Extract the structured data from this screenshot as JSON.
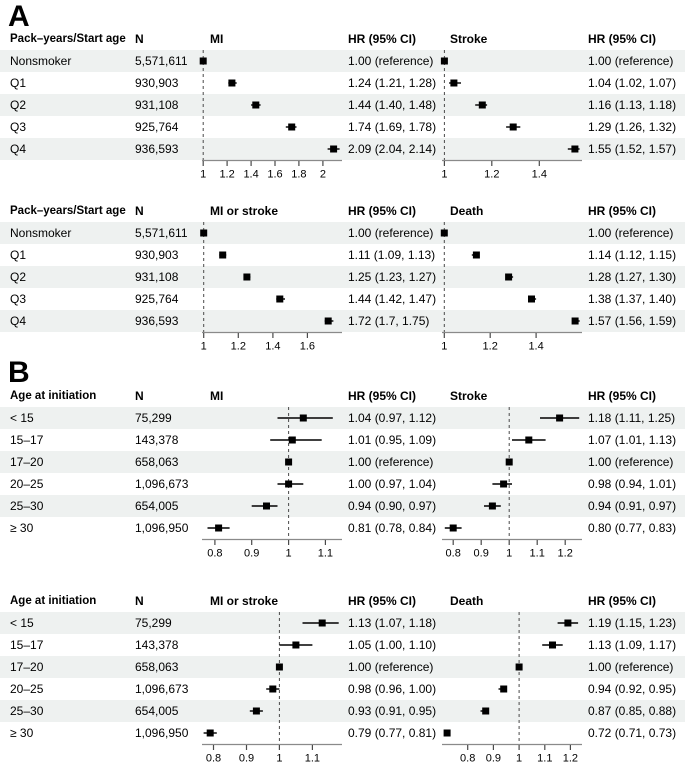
{
  "panels": [
    {
      "letter": "A"
    },
    {
      "letter": "B"
    }
  ],
  "styles": {
    "stripe_color": "#eef1f0",
    "marker_color": "#000000",
    "ci_color": "#000000",
    "axis_color": "#8a8a8a",
    "tick_color": "#4a4a4a",
    "ref_line_color": "#4a4a4a"
  },
  "chart_data": [
    {
      "type": "scatter",
      "subtype": "forest",
      "panel": "A",
      "label_header": "Pack–years/Start age",
      "n_header": "N",
      "hr_header": "HR (95% CI)",
      "rows": [
        {
          "label": "Nonsmoker",
          "n": "5,571,611"
        },
        {
          "label": "Q1",
          "n": "930,903"
        },
        {
          "label": "Q2",
          "n": "931,108"
        },
        {
          "label": "Q3",
          "n": "925,764"
        },
        {
          "label": "Q4",
          "n": "936,593"
        }
      ],
      "plots": [
        {
          "title": "MI",
          "xlim": [
            0.99,
            2.16
          ],
          "ref_line": 1,
          "tick_values": [
            1,
            1.2,
            1.4,
            1.6,
            1.8,
            2
          ],
          "tick_labels": [
            "1",
            "1.2",
            "1.4",
            "1.6",
            "1.8",
            "2"
          ],
          "points": [
            {
              "hr": 1.0,
              "ci": [
                1.0,
                1.0
              ],
              "text": "1.00 (reference)"
            },
            {
              "hr": 1.24,
              "ci": [
                1.21,
                1.28
              ],
              "text": "1.24 (1.21, 1.28)"
            },
            {
              "hr": 1.44,
              "ci": [
                1.4,
                1.48
              ],
              "text": "1.44 (1.40, 1.48)"
            },
            {
              "hr": 1.74,
              "ci": [
                1.69,
                1.78
              ],
              "text": "1.74 (1.69, 1.78)"
            },
            {
              "hr": 2.09,
              "ci": [
                2.04,
                2.14
              ],
              "text": "2.09 (2.04, 2.14)"
            }
          ]
        },
        {
          "title": "Stroke",
          "xlim": [
            0.99,
            1.58
          ],
          "ref_line": 1,
          "tick_values": [
            1,
            1.2,
            1.4
          ],
          "tick_labels": [
            "1",
            "1.2",
            "1.4"
          ],
          "points": [
            {
              "hr": 1.0,
              "ci": [
                1.0,
                1.0
              ],
              "text": "1.00 (reference)"
            },
            {
              "hr": 1.04,
              "ci": [
                1.02,
                1.07
              ],
              "text": "1.04 (1.02, 1.07)"
            },
            {
              "hr": 1.16,
              "ci": [
                1.13,
                1.18
              ],
              "text": "1.16 (1.13, 1.18)"
            },
            {
              "hr": 1.29,
              "ci": [
                1.26,
                1.32
              ],
              "text": "1.29 (1.26, 1.32)"
            },
            {
              "hr": 1.55,
              "ci": [
                1.52,
                1.57
              ],
              "text": "1.55 (1.52, 1.57)"
            }
          ]
        }
      ]
    },
    {
      "type": "scatter",
      "subtype": "forest",
      "panel": "A",
      "label_header": "Pack–years/Start age",
      "n_header": "N",
      "hr_header": "HR (95% CI)",
      "rows": [
        {
          "label": "Nonsmoker",
          "n": "5,571,611"
        },
        {
          "label": "Q1",
          "n": "930,903"
        },
        {
          "label": "Q2",
          "n": "931,108"
        },
        {
          "label": "Q3",
          "n": "925,764"
        },
        {
          "label": "Q4",
          "n": "936,593"
        }
      ],
      "plots": [
        {
          "title": "MI or stroke",
          "xlim": [
            0.99,
            1.8
          ],
          "ref_line": 1,
          "tick_values": [
            1,
            1.2,
            1.4,
            1.6
          ],
          "tick_labels": [
            "1",
            "1.2",
            "1.4",
            "1.6"
          ],
          "points": [
            {
              "hr": 1.0,
              "ci": [
                1.0,
                1.0
              ],
              "text": "1.00 (reference)"
            },
            {
              "hr": 1.11,
              "ci": [
                1.09,
                1.13
              ],
              "text": "1.11 (1.09, 1.13)"
            },
            {
              "hr": 1.25,
              "ci": [
                1.23,
                1.27
              ],
              "text": "1.25 (1.23, 1.27)"
            },
            {
              "hr": 1.44,
              "ci": [
                1.42,
                1.47
              ],
              "text": "1.44 (1.42, 1.47)"
            },
            {
              "hr": 1.72,
              "ci": [
                1.7,
                1.75
              ],
              "text": "1.72 (1.7, 1.75)"
            }
          ]
        },
        {
          "title": "Death",
          "xlim": [
            0.99,
            1.6
          ],
          "ref_line": 1,
          "tick_values": [
            1,
            1.2,
            1.4
          ],
          "tick_labels": [
            "1",
            "1.2",
            "1.4"
          ],
          "points": [
            {
              "hr": 1.0,
              "ci": [
                1.0,
                1.0
              ],
              "text": "1.00 (reference)"
            },
            {
              "hr": 1.14,
              "ci": [
                1.12,
                1.15
              ],
              "text": "1.14 (1.12, 1.15)"
            },
            {
              "hr": 1.28,
              "ci": [
                1.27,
                1.3
              ],
              "text": "1.28 (1.27, 1.30)"
            },
            {
              "hr": 1.38,
              "ci": [
                1.37,
                1.4
              ],
              "text": "1.38 (1.37, 1.40)"
            },
            {
              "hr": 1.57,
              "ci": [
                1.56,
                1.59
              ],
              "text": "1.57 (1.56, 1.59)"
            }
          ]
        }
      ]
    },
    {
      "type": "scatter",
      "subtype": "forest",
      "panel": "B",
      "label_header": "Age at initiation",
      "n_header": "N",
      "hr_header": "HR (95% CI)",
      "rows": [
        {
          "label": "< 15",
          "n": "75,299"
        },
        {
          "label": "15–17",
          "n": "143,378"
        },
        {
          "label": "17–20",
          "n": "658,063"
        },
        {
          "label": "20–25",
          "n": "1,096,673"
        },
        {
          "label": "25–30",
          "n": "654,005"
        },
        {
          "label": "≥ 30",
          "n": "1,096,950"
        }
      ],
      "plots": [
        {
          "title": "MI",
          "xlim": [
            0.765,
            1.145
          ],
          "ref_line": 1,
          "tick_values": [
            0.8,
            0.9,
            1,
            1.1
          ],
          "tick_labels": [
            "0.8",
            "0.9",
            "1",
            "1.1"
          ],
          "points": [
            {
              "hr": 1.04,
              "ci": [
                0.97,
                1.12
              ],
              "text": "1.04 (0.97, 1.12)"
            },
            {
              "hr": 1.01,
              "ci": [
                0.95,
                1.09
              ],
              "text": "1.01 (0.95, 1.09)"
            },
            {
              "hr": 1.0,
              "ci": [
                1.0,
                1.0
              ],
              "text": "1.00 (reference)"
            },
            {
              "hr": 1.0,
              "ci": [
                0.97,
                1.04
              ],
              "text": "1.00 (0.97, 1.04)"
            },
            {
              "hr": 0.94,
              "ci": [
                0.9,
                0.97
              ],
              "text": "0.94 (0.90, 0.97)"
            },
            {
              "hr": 0.81,
              "ci": [
                0.78,
                0.84
              ],
              "text": "0.81 (0.78, 0.84)"
            }
          ]
        },
        {
          "title": "Stroke",
          "xlim": [
            0.76,
            1.26
          ],
          "ref_line": 1,
          "tick_values": [
            0.8,
            0.9,
            1,
            1.1,
            1.2
          ],
          "tick_labels": [
            "0.8",
            "0.9",
            "1",
            "1.1",
            "1.2"
          ],
          "points": [
            {
              "hr": 1.18,
              "ci": [
                1.11,
                1.25
              ],
              "text": "1.18 (1.11, 1.25)"
            },
            {
              "hr": 1.07,
              "ci": [
                1.01,
                1.13
              ],
              "text": "1.07 (1.01, 1.13)"
            },
            {
              "hr": 1.0,
              "ci": [
                1.0,
                1.0
              ],
              "text": "1.00 (reference)"
            },
            {
              "hr": 0.98,
              "ci": [
                0.94,
                1.01
              ],
              "text": "0.98 (0.94, 1.01)"
            },
            {
              "hr": 0.94,
              "ci": [
                0.91,
                0.97
              ],
              "text": "0.94 (0.91, 0.97)"
            },
            {
              "hr": 0.8,
              "ci": [
                0.77,
                0.83
              ],
              "text": "0.80 (0.77, 0.83)"
            }
          ]
        }
      ]
    },
    {
      "type": "scatter",
      "subtype": "forest",
      "panel": "B",
      "label_header": "Age at initiation",
      "n_header": "N",
      "hr_header": "HR (95% CI)",
      "rows": [
        {
          "label": "< 15",
          "n": "75,299"
        },
        {
          "label": "15–17",
          "n": "143,378"
        },
        {
          "label": "17–20",
          "n": "658,063"
        },
        {
          "label": "20–25",
          "n": "1,096,673"
        },
        {
          "label": "25–30",
          "n": "654,005"
        },
        {
          "label": "≥ 30",
          "n": "1,096,950"
        }
      ],
      "plots": [
        {
          "title": "MI or stroke",
          "xlim": [
            0.765,
            1.19
          ],
          "ref_line": 1,
          "tick_values": [
            0.8,
            0.9,
            1,
            1.1
          ],
          "tick_labels": [
            "0.8",
            "0.9",
            "1",
            "1.1"
          ],
          "points": [
            {
              "hr": 1.13,
              "ci": [
                1.07,
                1.18
              ],
              "text": "1.13 (1.07, 1.18)"
            },
            {
              "hr": 1.05,
              "ci": [
                1.0,
                1.1
              ],
              "text": "1.05 (1.00, 1.10)"
            },
            {
              "hr": 1.0,
              "ci": [
                1.0,
                1.0
              ],
              "text": "1.00 (reference)"
            },
            {
              "hr": 0.98,
              "ci": [
                0.96,
                1.0
              ],
              "text": "0.98 (0.96, 1.00)"
            },
            {
              "hr": 0.93,
              "ci": [
                0.91,
                0.95
              ],
              "text": "0.93 (0.91, 0.95)"
            },
            {
              "hr": 0.79,
              "ci": [
                0.77,
                0.81
              ],
              "text": "0.79 (0.77, 0.81)"
            }
          ]
        },
        {
          "title": "Death",
          "xlim": [
            0.7,
            1.245
          ],
          "ref_line": 1,
          "tick_values": [
            0.8,
            0.9,
            1,
            1.1,
            1.2
          ],
          "tick_labels": [
            "0.8",
            "0.9",
            "1",
            "1.1",
            "1.2"
          ],
          "points": [
            {
              "hr": 1.19,
              "ci": [
                1.15,
                1.23
              ],
              "text": "1.19 (1.15, 1.23)"
            },
            {
              "hr": 1.13,
              "ci": [
                1.09,
                1.17
              ],
              "text": "1.13 (1.09, 1.17)"
            },
            {
              "hr": 1.0,
              "ci": [
                1.0,
                1.0
              ],
              "text": "1.00 (reference)"
            },
            {
              "hr": 0.94,
              "ci": [
                0.92,
                0.95
              ],
              "text": "0.94 (0.92, 0.95)"
            },
            {
              "hr": 0.87,
              "ci": [
                0.85,
                0.88
              ],
              "text": "0.87 (0.85, 0.88)"
            },
            {
              "hr": 0.72,
              "ci": [
                0.71,
                0.73
              ],
              "text": "0.72 (0.71, 0.73)"
            }
          ]
        }
      ]
    }
  ]
}
